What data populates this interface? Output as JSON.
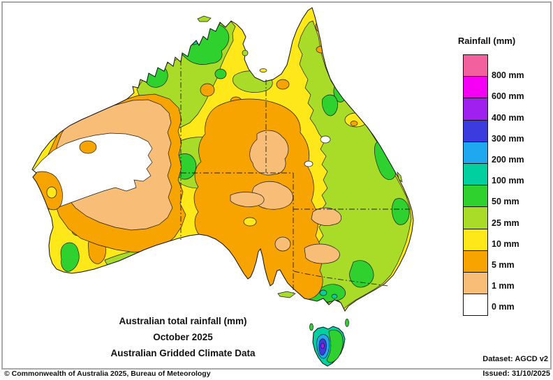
{
  "titles": {
    "line1": "Australian total rainfall (mm)",
    "line2": "October 2025",
    "line3": "Australian Gridded Climate Data"
  },
  "legend": {
    "title": "Rainfall (mm)",
    "items": [
      {
        "label": "800 mm",
        "color": "#F2609E"
      },
      {
        "label": "600 mm",
        "color": "#F500F5"
      },
      {
        "label": "400 mm",
        "color": "#A020F0"
      },
      {
        "label": "300 mm",
        "color": "#3B3BE0"
      },
      {
        "label": "200 mm",
        "color": "#1FA8F0"
      },
      {
        "label": "100 mm",
        "color": "#00D0A0"
      },
      {
        "label": "50 mm",
        "color": "#2FD12F"
      },
      {
        "label": "25 mm",
        "color": "#A9DC28"
      },
      {
        "label": "10 mm",
        "color": "#FFE81A"
      },
      {
        "label": "5 mm",
        "color": "#F7A300"
      },
      {
        "label": "1 mm",
        "color": "#F8BE78"
      },
      {
        "label": "0 mm",
        "color": "#FFFFFF"
      }
    ]
  },
  "palette": {
    "pink": "#F2609E",
    "magenta": "#F500F5",
    "purple": "#A020F0",
    "blue": "#3B3BE0",
    "light_blue": "#1FA8F0",
    "teal": "#00D0A0",
    "green": "#2FD12F",
    "yellow_green": "#A9DC28",
    "yellow": "#FFE81A",
    "orange": "#F7A300",
    "tan": "#F8BE78",
    "white": "#FFFFFF"
  },
  "footer": {
    "copyright": "© Commonwealth of Australia 2025, Bureau of Meteorology",
    "dataset": "Dataset: AGCD v2",
    "issued": "Issued: 31/10/2025"
  }
}
